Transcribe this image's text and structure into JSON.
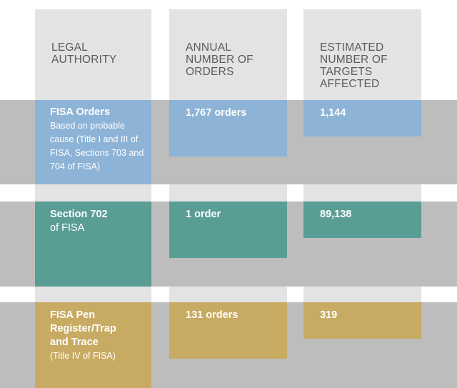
{
  "colors": {
    "fisa_orders": "#8db3d6",
    "section_702": "#5a9d95",
    "pen_register": "#c8ab62",
    "column_bg": "#e3e3e4",
    "band_bg": "#bdbdbe",
    "header_text": "#5b5b5b"
  },
  "headers": {
    "legal_authority": "LEGAL AUTHORITY",
    "annual_orders": "ANNUAL NUMBER OF ORDERS",
    "targets_affected": "ESTIMATED NUMBER OF TARGETS AFFECTED"
  },
  "chart_data": {
    "type": "table",
    "columns": [
      "LEGAL AUTHORITY",
      "ANNUAL NUMBER OF ORDERS",
      "ESTIMATED NUMBER OF TARGETS AFFECTED"
    ],
    "rows": [
      {
        "authority_title": "FISA Orders",
        "authority_detail": "Based on probable cause (Title I and III of FISA, Sections 703 and 704 of FISA)",
        "orders": 1767,
        "orders_label": "1,767 orders",
        "targets": 1144,
        "targets_label": "1,144"
      },
      {
        "authority_title": "Section 702",
        "authority_detail": "of FISA",
        "orders": 1,
        "orders_label": "1 order",
        "targets": 89138,
        "targets_label": "89,138"
      },
      {
        "authority_title": "FISA Pen Register/Trap and Trace",
        "authority_detail": "(Title IV of FISA)",
        "orders": 131,
        "orders_label": "131 orders",
        "targets": 319,
        "targets_label": "319"
      }
    ]
  }
}
